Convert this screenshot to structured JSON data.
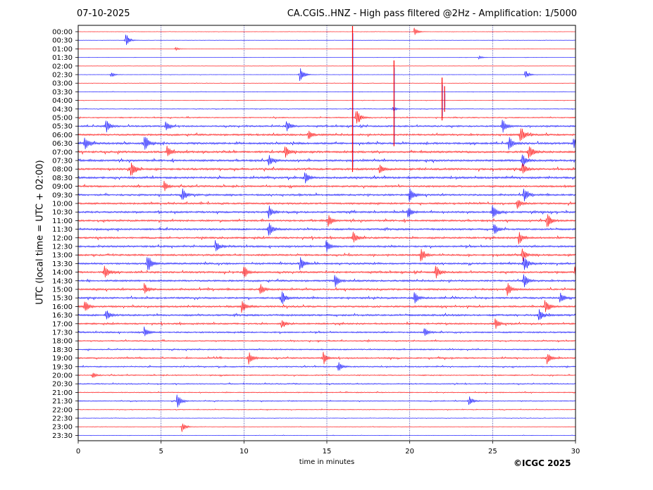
{
  "header": {
    "date": "07-10-2025",
    "title": "CA.CGIS..HNZ - High pass filtered @2Hz - Amplification: 1/5000"
  },
  "footer": {
    "copyright": "©ICGC 2025"
  },
  "colors": {
    "odd_trace": "#ff0000",
    "even_trace": "#0000ff",
    "grid": "#00008b",
    "frame": "#000000"
  },
  "chart_data": {
    "type": "line",
    "xlabel": "time in minutes",
    "ylabel": "UTC (local time = UTC + 02:00)",
    "xlim": [
      0,
      30
    ],
    "x_ticks": [
      0,
      5,
      10,
      15,
      20,
      25,
      30
    ],
    "x_tick_labels": [
      "0",
      "5",
      "10",
      "15",
      "20",
      "25",
      "30"
    ],
    "vertical_grid_minutes": [
      5,
      10,
      15,
      20,
      25
    ],
    "grid": "vertical dotted at every 5 minutes",
    "trace_colors_alternate": [
      "red",
      "blue"
    ],
    "row_labels": [
      "00:00",
      "00:30",
      "01:00",
      "01:30",
      "02:00",
      "02:30",
      "03:00",
      "03:30",
      "04:00",
      "04:30",
      "05:00",
      "05:30",
      "06:00",
      "06:30",
      "07:00",
      "07:30",
      "08:00",
      "08:30",
      "09:00",
      "09:30",
      "10:00",
      "10:30",
      "11:00",
      "11:30",
      "12:00",
      "12:30",
      "13:00",
      "13:30",
      "14:00",
      "14:30",
      "15:00",
      "15:30",
      "16:00",
      "16:30",
      "17:00",
      "17:30",
      "18:00",
      "18:30",
      "19:00",
      "19:30",
      "20:00",
      "20:30",
      "21:00",
      "21:30",
      "22:00",
      "22:30",
      "23:00",
      "23:30"
    ],
    "noise_level": [
      0.08,
      0.08,
      0.08,
      0.08,
      0.08,
      0.1,
      0.1,
      0.12,
      0.12,
      0.18,
      0.3,
      0.45,
      0.5,
      0.55,
      0.55,
      0.55,
      0.55,
      0.55,
      0.5,
      0.5,
      0.5,
      0.5,
      0.5,
      0.5,
      0.5,
      0.5,
      0.5,
      0.5,
      0.5,
      0.5,
      0.5,
      0.5,
      0.5,
      0.5,
      0.45,
      0.4,
      0.35,
      0.35,
      0.4,
      0.35,
      0.3,
      0.3,
      0.25,
      0.25,
      0.2,
      0.15,
      0.12,
      0.1
    ],
    "events": [
      {
        "row": "00:00",
        "minute": 20.3,
        "amp": 0.5
      },
      {
        "row": "00:30",
        "minute": 2.9,
        "amp": 0.8
      },
      {
        "row": "01:00",
        "minute": 5.9,
        "amp": 0.2
      },
      {
        "row": "01:30",
        "minute": 24.2,
        "amp": 0.2
      },
      {
        "row": "02:30",
        "minute": 2.0,
        "amp": 0.3
      },
      {
        "row": "02:30",
        "minute": 13.4,
        "amp": 1.1
      },
      {
        "row": "02:30",
        "minute": 27.0,
        "amp": 0.5
      },
      {
        "row": "04:30",
        "minute": 19.0,
        "amp": 0.3
      },
      {
        "row": "05:00",
        "minute": 16.8,
        "amp": 1.1
      },
      {
        "row": "05:30",
        "minute": 1.7,
        "amp": 0.8
      },
      {
        "row": "05:30",
        "minute": 5.3,
        "amp": 0.6
      },
      {
        "row": "05:30",
        "minute": 12.6,
        "amp": 0.7
      },
      {
        "row": "05:30",
        "minute": 25.6,
        "amp": 1.0
      },
      {
        "row": "06:00",
        "minute": 13.9,
        "amp": 0.6
      },
      {
        "row": "06:00",
        "minute": 26.7,
        "amp": 1.1
      },
      {
        "row": "06:30",
        "minute": 0.4,
        "amp": 0.9
      },
      {
        "row": "06:30",
        "minute": 4.0,
        "amp": 1.2
      },
      {
        "row": "06:30",
        "minute": 26.0,
        "amp": 0.9
      },
      {
        "row": "06:30",
        "minute": 29.9,
        "amp": 0.7
      },
      {
        "row": "07:00",
        "minute": 5.4,
        "amp": 0.7
      },
      {
        "row": "07:00",
        "minute": 12.5,
        "amp": 0.7
      },
      {
        "row": "07:00",
        "minute": 27.2,
        "amp": 1.0
      },
      {
        "row": "07:30",
        "minute": 11.5,
        "amp": 0.7
      },
      {
        "row": "07:30",
        "minute": 26.8,
        "amp": 0.8
      },
      {
        "row": "08:00",
        "minute": 3.2,
        "amp": 1.0
      },
      {
        "row": "08:00",
        "minute": 18.2,
        "amp": 0.6
      },
      {
        "row": "08:00",
        "minute": 26.8,
        "amp": 0.8
      },
      {
        "row": "08:30",
        "minute": 13.7,
        "amp": 0.7
      },
      {
        "row": "09:00",
        "minute": 5.2,
        "amp": 0.6
      },
      {
        "row": "09:30",
        "minute": 6.3,
        "amp": 0.7
      },
      {
        "row": "09:30",
        "minute": 20.0,
        "amp": 0.9
      },
      {
        "row": "09:30",
        "minute": 26.9,
        "amp": 0.9
      },
      {
        "row": "10:00",
        "minute": 26.5,
        "amp": 0.6
      },
      {
        "row": "10:30",
        "minute": 11.5,
        "amp": 0.8
      },
      {
        "row": "10:30",
        "minute": 19.9,
        "amp": 0.8
      },
      {
        "row": "10:30",
        "minute": 25.0,
        "amp": 1.0
      },
      {
        "row": "11:00",
        "minute": 15.1,
        "amp": 0.8
      },
      {
        "row": "11:00",
        "minute": 28.3,
        "amp": 1.0
      },
      {
        "row": "11:30",
        "minute": 11.5,
        "amp": 1.1
      },
      {
        "row": "11:30",
        "minute": 25.1,
        "amp": 0.8
      },
      {
        "row": "12:00",
        "minute": 16.6,
        "amp": 0.8
      },
      {
        "row": "12:00",
        "minute": 26.6,
        "amp": 0.8
      },
      {
        "row": "12:30",
        "minute": 8.3,
        "amp": 0.7
      },
      {
        "row": "12:30",
        "minute": 15.0,
        "amp": 0.7
      },
      {
        "row": "13:00",
        "minute": 20.7,
        "amp": 0.9
      },
      {
        "row": "13:00",
        "minute": 26.8,
        "amp": 0.8
      },
      {
        "row": "13:30",
        "minute": 4.2,
        "amp": 1.2
      },
      {
        "row": "13:30",
        "minute": 13.4,
        "amp": 1.0
      },
      {
        "row": "13:30",
        "minute": 26.9,
        "amp": 1.0
      },
      {
        "row": "14:00",
        "minute": 1.6,
        "amp": 1.0
      },
      {
        "row": "14:00",
        "minute": 10.0,
        "amp": 0.8
      },
      {
        "row": "14:00",
        "minute": 21.6,
        "amp": 0.8
      },
      {
        "row": "14:00",
        "minute": 30.0,
        "amp": 0.8
      },
      {
        "row": "14:30",
        "minute": 15.5,
        "amp": 0.8
      },
      {
        "row": "14:30",
        "minute": 26.9,
        "amp": 0.8
      },
      {
        "row": "15:00",
        "minute": 4.0,
        "amp": 0.7
      },
      {
        "row": "15:00",
        "minute": 11.0,
        "amp": 0.7
      },
      {
        "row": "15:00",
        "minute": 25.9,
        "amp": 0.9
      },
      {
        "row": "15:30",
        "minute": 12.3,
        "amp": 0.8
      },
      {
        "row": "15:30",
        "minute": 20.3,
        "amp": 0.8
      },
      {
        "row": "15:30",
        "minute": 29.1,
        "amp": 0.7
      },
      {
        "row": "16:00",
        "minute": 0.4,
        "amp": 0.8
      },
      {
        "row": "16:00",
        "minute": 9.9,
        "amp": 0.7
      },
      {
        "row": "16:00",
        "minute": 28.2,
        "amp": 0.8
      },
      {
        "row": "16:30",
        "minute": 1.7,
        "amp": 0.7
      },
      {
        "row": "16:30",
        "minute": 27.8,
        "amp": 0.9
      },
      {
        "row": "17:00",
        "minute": 12.3,
        "amp": 0.5
      },
      {
        "row": "17:00",
        "minute": 25.2,
        "amp": 0.6
      },
      {
        "row": "17:30",
        "minute": 4.0,
        "amp": 0.7
      },
      {
        "row": "17:30",
        "minute": 20.9,
        "amp": 0.6
      },
      {
        "row": "19:00",
        "minute": 10.3,
        "amp": 0.8
      },
      {
        "row": "19:00",
        "minute": 14.8,
        "amp": 0.8
      },
      {
        "row": "19:00",
        "minute": 28.3,
        "amp": 0.7
      },
      {
        "row": "19:30",
        "minute": 15.7,
        "amp": 0.6
      },
      {
        "row": "20:00",
        "minute": 0.9,
        "amp": 0.3
      },
      {
        "row": "21:30",
        "minute": 6.0,
        "amp": 0.8
      },
      {
        "row": "21:30",
        "minute": 23.6,
        "amp": 0.6
      },
      {
        "row": "23:00",
        "minute": 6.3,
        "amp": 0.6
      }
    ],
    "spikes": [
      {
        "minute": 16.55,
        "from_row": "00:00",
        "to_row": "08:00"
      },
      {
        "minute": 19.05,
        "from_row": "02:00",
        "to_row": "06:30"
      },
      {
        "minute": 21.95,
        "from_row": "03:00",
        "to_row": "05:00"
      },
      {
        "minute": 22.1,
        "from_row": "03:30",
        "to_row": "04:30"
      }
    ]
  }
}
